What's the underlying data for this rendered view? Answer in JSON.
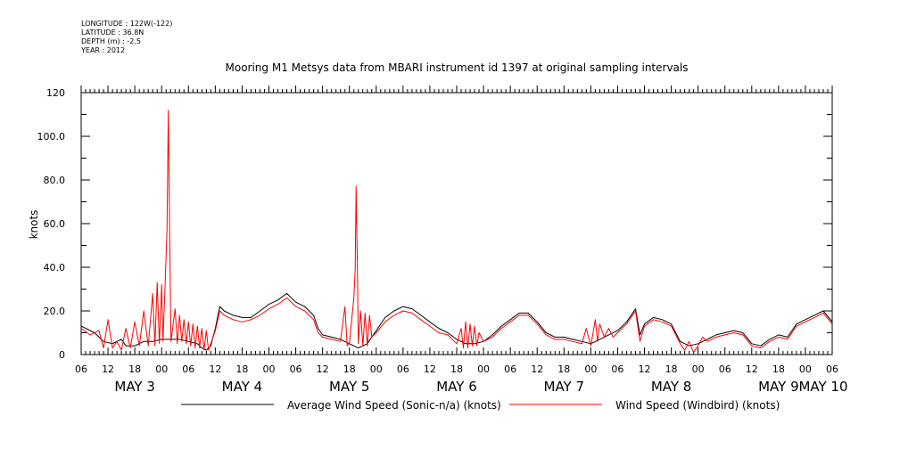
{
  "header": {
    "longitude": "LONGITUDE : 122W(-122)",
    "latitude": "LATITUDE : 36.8N",
    "depth": "DEPTH (m) : -2.5",
    "year": "YEAR : 2012"
  },
  "chart_data": {
    "type": "line",
    "title": "Mooring M1 Metsys data from MBARI instrument id 1397 at original sampling intervals",
    "xlabel": "",
    "ylabel": "knots",
    "ylim": [
      0,
      120
    ],
    "yticks": [
      0,
      20.0,
      40.0,
      60.0,
      80.0,
      100.0,
      120.0
    ],
    "ytick_labels": [
      "0",
      "20.0",
      "40.0",
      "60.0",
      "80.0",
      "100.0",
      "120"
    ],
    "x_unit": "hours since May 3 2012 00:00",
    "xlim": [
      -18,
      150
    ],
    "hour_tick_labels": [
      "06",
      "12",
      "18",
      "00",
      "06",
      "12",
      "18",
      "00",
      "06",
      "12",
      "18",
      "00",
      "06",
      "12",
      "18",
      "00",
      "06",
      "12",
      "18",
      "00",
      "06",
      "12",
      "18",
      "00",
      "06",
      "12",
      "18",
      "00",
      "06"
    ],
    "day_labels": [
      {
        "text": "MAY  3",
        "hour": -6
      },
      {
        "text": "MAY  4",
        "hour": 18
      },
      {
        "text": "MAY  5",
        "hour": 42
      },
      {
        "text": "MAY  6",
        "hour": 66
      },
      {
        "text": "MAY  7",
        "hour": 90
      },
      {
        "text": "MAY  8",
        "hour": 114
      },
      {
        "text": "MAY  9",
        "hour": 138
      },
      {
        "text": "MAY 10",
        "hour": 148
      }
    ],
    "grid": false,
    "legend": "bottom",
    "series": [
      {
        "name": "Average Wind Speed (Sonic-n/a) (knots)",
        "color": "#000000",
        "points": [
          [
            -18,
            13
          ],
          [
            -15,
            10
          ],
          [
            -13,
            6
          ],
          [
            -11,
            5
          ],
          [
            -9,
            7
          ],
          [
            -8,
            4
          ],
          [
            -6,
            4
          ],
          [
            -4,
            6
          ],
          [
            -2,
            6
          ],
          [
            0,
            7
          ],
          [
            2,
            7
          ],
          [
            4,
            7
          ],
          [
            6,
            6
          ],
          [
            8,
            5
          ],
          [
            9,
            3
          ],
          [
            10,
            2
          ],
          [
            11,
            4
          ],
          [
            12,
            12
          ],
          [
            13,
            22
          ],
          [
            14,
            20
          ],
          [
            16,
            18
          ],
          [
            18,
            17
          ],
          [
            20,
            17
          ],
          [
            22,
            20
          ],
          [
            24,
            23
          ],
          [
            26,
            25
          ],
          [
            28,
            28
          ],
          [
            30,
            24
          ],
          [
            32,
            22
          ],
          [
            34,
            18
          ],
          [
            35,
            12
          ],
          [
            36,
            9
          ],
          [
            38,
            8
          ],
          [
            40,
            7
          ],
          [
            42,
            5
          ],
          [
            44,
            3
          ],
          [
            46,
            5
          ],
          [
            48,
            11
          ],
          [
            50,
            17
          ],
          [
            52,
            20
          ],
          [
            54,
            22
          ],
          [
            56,
            21
          ],
          [
            58,
            18
          ],
          [
            60,
            15
          ],
          [
            62,
            12
          ],
          [
            64,
            10
          ],
          [
            66,
            7
          ],
          [
            68,
            5
          ],
          [
            70,
            5
          ],
          [
            72,
            6
          ],
          [
            74,
            9
          ],
          [
            76,
            13
          ],
          [
            78,
            16
          ],
          [
            80,
            19
          ],
          [
            82,
            19
          ],
          [
            84,
            15
          ],
          [
            86,
            10
          ],
          [
            88,
            8
          ],
          [
            90,
            8
          ],
          [
            92,
            7
          ],
          [
            94,
            6
          ],
          [
            96,
            5
          ],
          [
            98,
            7
          ],
          [
            100,
            9
          ],
          [
            102,
            11
          ],
          [
            104,
            15
          ],
          [
            106,
            21
          ],
          [
            107,
            9
          ],
          [
            108,
            14
          ],
          [
            110,
            17
          ],
          [
            112,
            16
          ],
          [
            114,
            14
          ],
          [
            116,
            6
          ],
          [
            118,
            4
          ],
          [
            120,
            5
          ],
          [
            122,
            7
          ],
          [
            124,
            9
          ],
          [
            126,
            10
          ],
          [
            128,
            11
          ],
          [
            130,
            10
          ],
          [
            132,
            5
          ],
          [
            134,
            4
          ],
          [
            136,
            7
          ],
          [
            138,
            9
          ],
          [
            140,
            8
          ],
          [
            142,
            14
          ],
          [
            144,
            16
          ],
          [
            146,
            18
          ],
          [
            148,
            20
          ],
          [
            150,
            15
          ]
        ]
      },
      {
        "name": "Wind Speed (Windbird) (knots)",
        "color": "#ff0000",
        "points": [
          [
            -18,
            12
          ],
          [
            -16,
            9
          ],
          [
            -14,
            11
          ],
          [
            -13,
            3
          ],
          [
            -12,
            16
          ],
          [
            -11,
            3
          ],
          [
            -10,
            6
          ],
          [
            -9,
            2
          ],
          [
            -8,
            12
          ],
          [
            -7,
            3
          ],
          [
            -6,
            15
          ],
          [
            -5,
            4
          ],
          [
            -4,
            20
          ],
          [
            -3,
            4
          ],
          [
            -2,
            28
          ],
          [
            -1.5,
            4
          ],
          [
            -1,
            33
          ],
          [
            -0.5,
            5
          ],
          [
            0,
            32
          ],
          [
            0.3,
            6
          ],
          [
            0.8,
            33
          ],
          [
            1.2,
            57
          ],
          [
            1.5,
            112
          ],
          [
            1.8,
            57
          ],
          [
            2.1,
            6
          ],
          [
            3,
            21
          ],
          [
            3.5,
            5
          ],
          [
            4,
            18
          ],
          [
            4.5,
            6
          ],
          [
            5,
            16
          ],
          [
            5.5,
            5
          ],
          [
            6,
            15
          ],
          [
            6.5,
            4
          ],
          [
            7,
            14
          ],
          [
            7.5,
            3
          ],
          [
            8,
            13
          ],
          [
            8.5,
            3
          ],
          [
            9,
            12
          ],
          [
            9.5,
            2
          ],
          [
            10,
            11
          ],
          [
            10.5,
            2
          ],
          [
            11,
            5
          ],
          [
            12,
            11
          ],
          [
            13,
            20
          ],
          [
            14,
            18
          ],
          [
            16,
            16
          ],
          [
            18,
            15
          ],
          [
            20,
            16
          ],
          [
            22,
            18
          ],
          [
            24,
            21
          ],
          [
            26,
            23
          ],
          [
            28,
            26
          ],
          [
            30,
            22
          ],
          [
            32,
            20
          ],
          [
            34,
            16
          ],
          [
            35,
            10
          ],
          [
            36,
            8
          ],
          [
            38,
            7
          ],
          [
            40,
            6
          ],
          [
            41,
            22
          ],
          [
            41.5,
            4
          ],
          [
            42,
            5
          ],
          [
            43,
            26
          ],
          [
            43.3,
            39
          ],
          [
            43.5,
            77
          ],
          [
            43.8,
            40
          ],
          [
            44,
            5
          ],
          [
            44.5,
            20
          ],
          [
            45,
            4
          ],
          [
            45.5,
            19
          ],
          [
            46,
            4
          ],
          [
            46.5,
            18
          ],
          [
            47,
            8
          ],
          [
            48,
            10
          ],
          [
            50,
            15
          ],
          [
            52,
            18
          ],
          [
            54,
            20
          ],
          [
            56,
            19
          ],
          [
            58,
            16
          ],
          [
            60,
            13
          ],
          [
            62,
            10
          ],
          [
            64,
            9
          ],
          [
            66,
            5
          ],
          [
            67,
            12
          ],
          [
            67.5,
            3
          ],
          [
            68,
            15
          ],
          [
            68.5,
            3
          ],
          [
            69,
            14
          ],
          [
            69.5,
            4
          ],
          [
            70,
            13
          ],
          [
            70.5,
            4
          ],
          [
            71,
            10
          ],
          [
            72,
            6
          ],
          [
            74,
            8
          ],
          [
            76,
            12
          ],
          [
            78,
            15
          ],
          [
            80,
            18
          ],
          [
            82,
            18
          ],
          [
            84,
            14
          ],
          [
            86,
            9
          ],
          [
            88,
            7
          ],
          [
            90,
            7
          ],
          [
            92,
            6
          ],
          [
            94,
            5
          ],
          [
            95,
            12
          ],
          [
            96,
            4
          ],
          [
            97,
            16
          ],
          [
            97.5,
            6
          ],
          [
            98,
            14
          ],
          [
            99,
            8
          ],
          [
            100,
            12
          ],
          [
            101,
            8
          ],
          [
            102,
            10
          ],
          [
            104,
            14
          ],
          [
            106,
            20
          ],
          [
            107,
            6
          ],
          [
            108,
            13
          ],
          [
            110,
            16
          ],
          [
            112,
            15
          ],
          [
            114,
            13
          ],
          [
            116,
            5
          ],
          [
            117,
            2
          ],
          [
            118,
            6
          ],
          [
            119,
            1
          ],
          [
            120,
            4
          ],
          [
            121,
            8
          ],
          [
            122,
            6
          ],
          [
            124,
            8
          ],
          [
            126,
            9
          ],
          [
            128,
            10
          ],
          [
            130,
            9
          ],
          [
            132,
            4
          ],
          [
            134,
            3
          ],
          [
            136,
            6
          ],
          [
            138,
            8
          ],
          [
            140,
            7
          ],
          [
            142,
            13
          ],
          [
            144,
            15
          ],
          [
            146,
            17
          ],
          [
            148,
            19
          ],
          [
            150,
            14
          ]
        ]
      }
    ]
  }
}
